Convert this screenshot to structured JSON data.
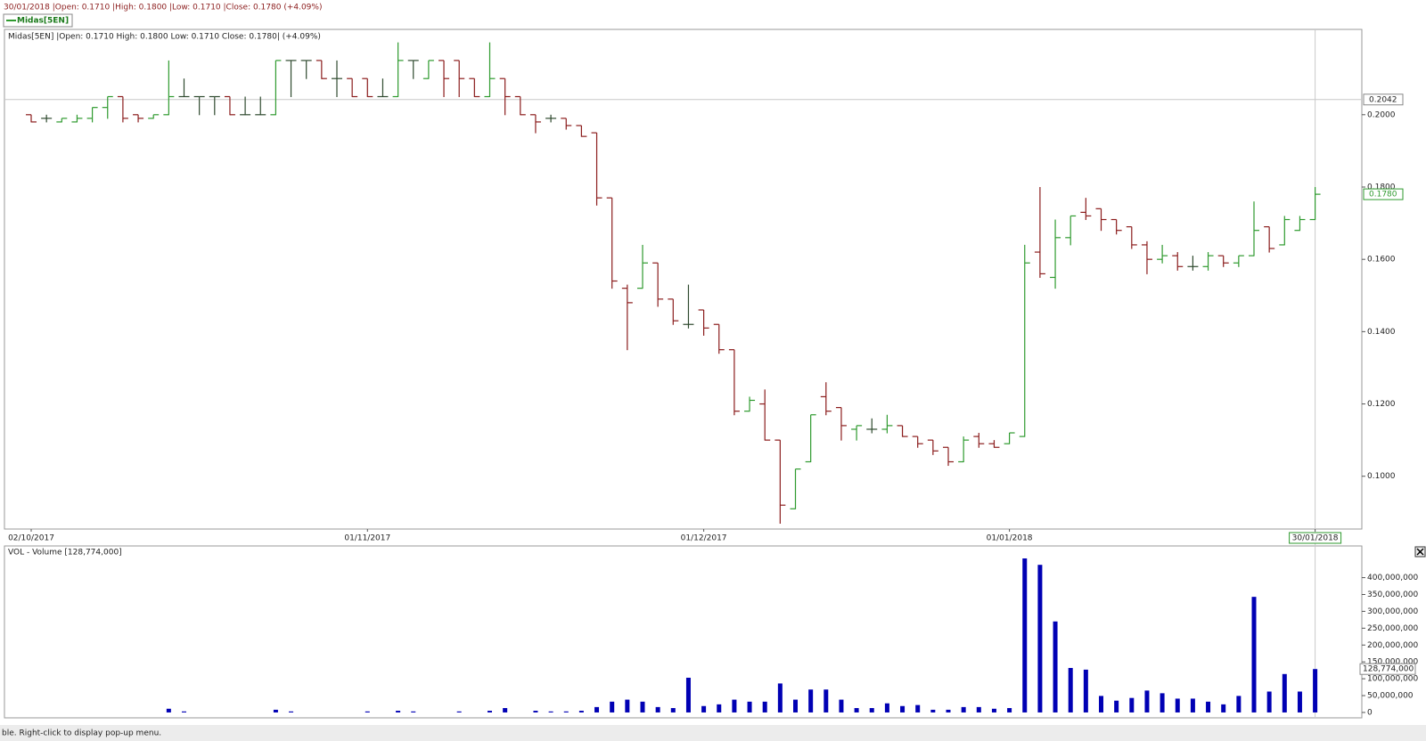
{
  "header": "30/01/2018 |Open: 0.1710 |High: 0.1800 |Low: 0.1710 |Close: 0.1780 (+4.09%)",
  "legend": "Midas[5EN]",
  "status_bar": "ble. Right-click to display pop-up menu.",
  "chart_data": [
    {
      "type": "ohlc",
      "title": "Midas[5EN] |Open: 0.1710  High: 0.1800  Low: 0.1710  Close: 0.1780| (+4.09%)",
      "categories": [
        "02/10/2017",
        null,
        null,
        null,
        null,
        null,
        null,
        null,
        null,
        null,
        null,
        null,
        null,
        null,
        null,
        null,
        null,
        null,
        null,
        null,
        null,
        null,
        "01/11/2017",
        null,
        null,
        null,
        null,
        null,
        null,
        null,
        null,
        null,
        null,
        null,
        null,
        null,
        null,
        null,
        null,
        null,
        null,
        null,
        null,
        null,
        "01/12/2017",
        null,
        null,
        null,
        null,
        null,
        null,
        null,
        null,
        null,
        null,
        null,
        null,
        null,
        null,
        null,
        null,
        null,
        null,
        null,
        "01/01/2018",
        null,
        null,
        null,
        null,
        null,
        null,
        null,
        null,
        null,
        null,
        null,
        null,
        null,
        null,
        null,
        null,
        null,
        null,
        null,
        "30/01/2018"
      ],
      "open": [
        0.2,
        0.199,
        0.198,
        0.198,
        0.199,
        0.202,
        0.205,
        0.2,
        0.199,
        0.2,
        0.205,
        0.205,
        0.205,
        0.205,
        0.2,
        0.2,
        0.2,
        0.215,
        0.215,
        0.215,
        0.21,
        0.21,
        0.21,
        0.205,
        0.205,
        0.215,
        0.21,
        0.215,
        0.215,
        0.21,
        0.205,
        0.21,
        0.205,
        0.2,
        0.199,
        0.199,
        0.197,
        0.195,
        0.177,
        0.152,
        0.152,
        0.159,
        0.149,
        0.142,
        0.146,
        0.142,
        0.135,
        0.118,
        0.12,
        0.11,
        0.091,
        0.104,
        0.122,
        0.119,
        0.113,
        0.113,
        0.113,
        0.114,
        0.111,
        0.11,
        0.108,
        0.104,
        0.111,
        0.109,
        0.109,
        0.111,
        0.162,
        0.155,
        0.166,
        0.173,
        0.174,
        0.171,
        0.169,
        0.164,
        0.16,
        0.161,
        0.158,
        0.158,
        0.161,
        0.159,
        0.161,
        0.169,
        0.164,
        0.168,
        0.171
      ],
      "high": [
        0.2,
        0.2,
        0.199,
        0.2,
        0.202,
        0.205,
        0.205,
        0.2,
        0.2,
        0.215,
        0.21,
        0.205,
        0.205,
        0.205,
        0.205,
        0.205,
        0.215,
        0.215,
        0.215,
        0.215,
        0.215,
        0.21,
        0.21,
        0.21,
        0.22,
        0.215,
        0.215,
        0.215,
        0.215,
        0.21,
        0.22,
        0.21,
        0.205,
        0.2,
        0.2,
        0.199,
        0.197,
        0.195,
        0.177,
        0.153,
        0.164,
        0.159,
        0.149,
        0.153,
        0.146,
        0.142,
        0.135,
        0.122,
        0.124,
        0.11,
        0.102,
        0.117,
        0.126,
        0.119,
        0.114,
        0.116,
        0.117,
        0.114,
        0.111,
        0.11,
        0.108,
        0.111,
        0.112,
        0.11,
        0.112,
        0.164,
        0.18,
        0.171,
        0.172,
        0.177,
        0.174,
        0.171,
        0.169,
        0.165,
        0.164,
        0.162,
        0.161,
        0.162,
        0.161,
        0.161,
        0.176,
        0.169,
        0.172,
        0.172,
        0.18
      ],
      "low": [
        0.198,
        0.198,
        0.198,
        0.198,
        0.198,
        0.199,
        0.198,
        0.198,
        0.199,
        0.2,
        0.205,
        0.2,
        0.2,
        0.2,
        0.2,
        0.2,
        0.2,
        0.205,
        0.21,
        0.21,
        0.205,
        0.205,
        0.205,
        0.205,
        0.205,
        0.21,
        0.21,
        0.205,
        0.205,
        0.205,
        0.205,
        0.2,
        0.2,
        0.195,
        0.198,
        0.196,
        0.194,
        0.175,
        0.152,
        0.135,
        0.152,
        0.147,
        0.142,
        0.141,
        0.139,
        0.134,
        0.117,
        0.118,
        0.11,
        0.087,
        0.091,
        0.104,
        0.117,
        0.11,
        0.11,
        0.112,
        0.112,
        0.111,
        0.108,
        0.106,
        0.103,
        0.104,
        0.108,
        0.108,
        0.109,
        0.111,
        0.155,
        0.152,
        0.164,
        0.171,
        0.168,
        0.167,
        0.163,
        0.156,
        0.159,
        0.157,
        0.157,
        0.157,
        0.158,
        0.158,
        0.161,
        0.162,
        0.164,
        0.168,
        0.171
      ],
      "close": [
        0.198,
        0.199,
        0.199,
        0.199,
        0.202,
        0.205,
        0.199,
        0.199,
        0.2,
        0.205,
        0.205,
        0.205,
        0.205,
        0.2,
        0.2,
        0.2,
        0.215,
        0.215,
        0.215,
        0.21,
        0.21,
        0.205,
        0.205,
        0.205,
        0.215,
        0.215,
        0.215,
        0.21,
        0.21,
        0.205,
        0.21,
        0.205,
        0.2,
        0.198,
        0.199,
        0.197,
        0.194,
        0.177,
        0.154,
        0.148,
        0.159,
        0.149,
        0.143,
        0.142,
        0.141,
        0.135,
        0.118,
        0.121,
        0.11,
        0.092,
        0.102,
        0.117,
        0.118,
        0.114,
        0.114,
        0.113,
        0.114,
        0.111,
        0.109,
        0.107,
        0.104,
        0.11,
        0.109,
        0.108,
        0.112,
        0.159,
        0.156,
        0.166,
        0.172,
        0.172,
        0.171,
        0.168,
        0.164,
        0.16,
        0.161,
        0.158,
        0.158,
        0.161,
        0.159,
        0.161,
        0.168,
        0.163,
        0.171,
        0.171,
        0.178
      ],
      "colors": {
        "up": "#2e9a2e",
        "down": "#8b1c1c",
        "flat": "#2f4a2f"
      },
      "last_label": "0.1780",
      "crosshair": {
        "value": 0.2042,
        "label": "0.2042"
      },
      "ylim": [
        0.0854,
        0.2236
      ],
      "yticks": [
        {
          "value": 0.1,
          "label": "0.1000"
        },
        {
          "value": 0.12,
          "label": "0.1200"
        },
        {
          "value": 0.14,
          "label": "0.1400"
        },
        {
          "value": 0.16,
          "label": "0.1600"
        },
        {
          "value": 0.18,
          "label": "0.1800"
        },
        {
          "value": 0.2,
          "label": "0.2000"
        }
      ],
      "grid": false
    },
    {
      "type": "bar",
      "title": "VOL - Volume [128,774,000]",
      "color": "#0000b4",
      "values": [
        0,
        0,
        0,
        0,
        0,
        0,
        0,
        0,
        0,
        11000000,
        3000000,
        0,
        0,
        0,
        0,
        0,
        8000000,
        3000000,
        0,
        0,
        0,
        0,
        3000000,
        0,
        5000000,
        3000000,
        0,
        0,
        3000000,
        0,
        5000000,
        13000000,
        0,
        5000000,
        3000000,
        3000000,
        5000000,
        16000000,
        32000000,
        38000000,
        32000000,
        16000000,
        13000000,
        103000000,
        19000000,
        24000000,
        38000000,
        32000000,
        32000000,
        86000000,
        38000000,
        68000000,
        68000000,
        38000000,
        13000000,
        13000000,
        27000000,
        19000000,
        22000000,
        8000000,
        8000000,
        16000000,
        16000000,
        11000000,
        13000000,
        457000000,
        438000000,
        270000000,
        132000000,
        127000000,
        49000000,
        35000000,
        43000000,
        65000000,
        57000000,
        41000000,
        41000000,
        32000000,
        24000000,
        49000000,
        343000000,
        62000000,
        114000000,
        62000000,
        128774000
      ],
      "value_labels": [
        null,
        null,
        null,
        null,
        null,
        null,
        null,
        null,
        null,
        null,
        null,
        null,
        null,
        null,
        null,
        null,
        null,
        null,
        null,
        null,
        null,
        null,
        null,
        null,
        null,
        null,
        null,
        null,
        null,
        null,
        null,
        null,
        null,
        null,
        null,
        null,
        null,
        null,
        null,
        null,
        null,
        null,
        null,
        null,
        null,
        null,
        null,
        null,
        null,
        null,
        null,
        null,
        null,
        null,
        null,
        null,
        null,
        null,
        null,
        null,
        null,
        null,
        null,
        null,
        null,
        null,
        null,
        null,
        null,
        null,
        null,
        null,
        null,
        null,
        null,
        null,
        null,
        null,
        null,
        null,
        null,
        null,
        null,
        null,
        "128,774,000"
      ],
      "ylim": [
        -16000000,
        494000000
      ],
      "yticks": [
        0,
        {
          "value": 50000000,
          "label": "50,000,000"
        },
        {
          "value": 100000000,
          "label": "100,000,000"
        },
        {
          "value": 150000000,
          "label": "150,000,000"
        },
        {
          "value": 200000000,
          "label": "200,000,000"
        },
        {
          "value": 250000000,
          "label": "250,000,000"
        },
        {
          "value": 300000000,
          "label": "300,000,000"
        },
        {
          "value": 350000000,
          "label": "350,000,000"
        },
        {
          "value": 400000000,
          "label": "400,000,000"
        }
      ],
      "grid": false
    }
  ]
}
